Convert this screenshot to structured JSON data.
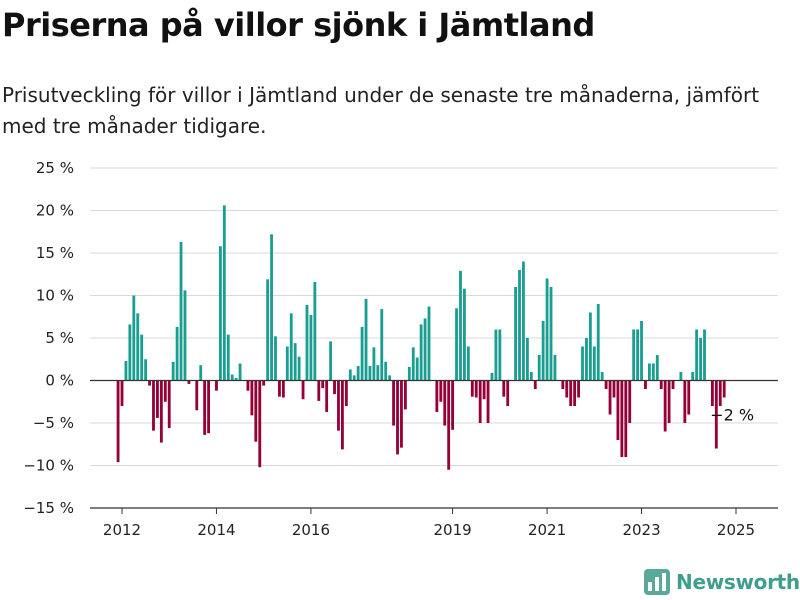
{
  "title": "Priserna på villor sjönk i Jämtland",
  "subtitle": "Prisutveckling för villor i Jämtland under de senaste tre månaderna, jämfört med tre månader tidigare.",
  "brand": "Newsworthy",
  "colors": {
    "positive": "#1a9e91",
    "negative": "#950036",
    "grid": "#d9d9d9",
    "axis": "#333333"
  },
  "chart_data": {
    "type": "bar",
    "x_start": "2011-12",
    "frequency": "monthly",
    "x_ticks": [
      "2012",
      "2014",
      "2016",
      "2019",
      "2021",
      "2023",
      "2025"
    ],
    "ylim": [
      -15,
      25
    ],
    "y_ticks": [
      25,
      20,
      15,
      10,
      5,
      0,
      -5,
      -10,
      -15
    ],
    "y_tick_labels": [
      "25 %",
      "20 %",
      "15 %",
      "10 %",
      "5 %",
      "0 %",
      "−5 %",
      "−10 %",
      "−15 %"
    ],
    "grid": true,
    "annotation": "−2 %",
    "values": [
      -9.6,
      -3.0,
      2.3,
      6.6,
      10.0,
      7.9,
      5.4,
      2.5,
      -0.6,
      -5.9,
      -4.4,
      -7.3,
      -2.5,
      -5.6,
      2.2,
      6.3,
      16.3,
      10.6,
      -0.4,
      0.0,
      -3.5,
      1.8,
      -6.4,
      -6.2,
      0.0,
      -1.2,
      15.8,
      20.6,
      5.4,
      0.7,
      0.3,
      2.0,
      0.0,
      -1.2,
      -4.1,
      -7.2,
      -10.2,
      -0.6,
      11.9,
      17.2,
      5.2,
      -1.9,
      -2.0,
      4.0,
      7.9,
      4.4,
      2.8,
      -2.2,
      8.9,
      7.7,
      11.6,
      -2.4,
      -0.9,
      -3.7,
      4.6,
      -1.6,
      -5.9,
      -8.1,
      -3.0,
      1.3,
      0.6,
      1.7,
      6.3,
      9.6,
      1.7,
      3.9,
      1.8,
      8.4,
      2.2,
      0.6,
      -5.3,
      -8.7,
      -7.9,
      -3.4,
      1.6,
      3.9,
      2.7,
      6.6,
      7.3,
      8.7,
      0.0,
      -3.7,
      -2.5,
      -5.3,
      -10.5,
      -5.8,
      8.5,
      12.9,
      10.8,
      4.0,
      -1.9,
      -2.0,
      -5.0,
      -2.2,
      -5.0,
      0.9,
      6.0,
      6.0,
      -1.9,
      -3.0,
      0.0,
      11.0,
      13.0,
      14.0,
      5.0,
      1.0,
      -1.0,
      3.0,
      7.0,
      12.0,
      11.0,
      3.0,
      0.0,
      -1.0,
      -2.0,
      -3.0,
      -3.0,
      -2.0,
      4.0,
      5.0,
      8.0,
      4.0,
      9.0,
      1.0,
      -1.0,
      -4.0,
      -2.0,
      -7.0,
      -9.0,
      -9.0,
      -5.0,
      6.0,
      6.0,
      7.0,
      -1.0,
      2.0,
      2.0,
      3.0,
      -1.0,
      -6.0,
      -5.0,
      -1.0,
      0.0,
      1.0,
      -5.0,
      -4.0,
      1.0,
      6.0,
      5.0,
      6.0,
      0.0,
      -3.0,
      -8.0,
      -3.0,
      -2.0
    ]
  }
}
